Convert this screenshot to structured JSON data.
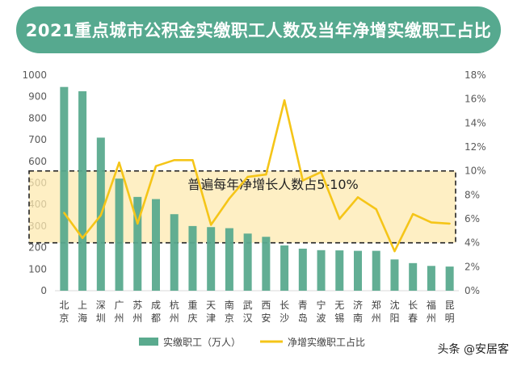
{
  "colors": {
    "title_bg": "#56a98f",
    "bar": "#5aaa8e",
    "line": "#f5c518",
    "band_fill": "#fdeab0",
    "band_border": "#222222",
    "axis_text": "#595959"
  },
  "watermark": "头条 @安居客",
  "chart_data": {
    "type": "bar+line",
    "title": "2021重点城市公积金实缴职工人数及当年净增实缴职工占比",
    "categories": [
      "北京",
      "上海",
      "深圳",
      "广州",
      "苏州",
      "成都",
      "杭州",
      "重庆",
      "天津",
      "南京",
      "武汉",
      "西安",
      "长沙",
      "青岛",
      "宁波",
      "无锡",
      "济南",
      "郑州",
      "沈阳",
      "长春",
      "福州",
      "昆明"
    ],
    "category_labels": [
      [
        "北",
        "京"
      ],
      [
        "上",
        "海"
      ],
      [
        "深",
        "圳"
      ],
      [
        "广",
        "州"
      ],
      [
        "苏",
        "州"
      ],
      [
        "成",
        "都"
      ],
      [
        "杭",
        "州"
      ],
      [
        "重",
        "庆"
      ],
      [
        "天",
        "津"
      ],
      [
        "南",
        "京"
      ],
      [
        "武",
        "汉"
      ],
      [
        "西",
        "安"
      ],
      [
        "长",
        "沙"
      ],
      [
        "青",
        "岛"
      ],
      [
        "宁",
        "波"
      ],
      [
        "无",
        "锡"
      ],
      [
        "济",
        "南"
      ],
      [
        "郑",
        "州"
      ],
      [
        "沈",
        "阳"
      ],
      [
        "长",
        "春"
      ],
      [
        "福",
        "州"
      ],
      [
        "昆",
        "明"
      ]
    ],
    "series": [
      {
        "name": "实缴职工（万人）",
        "type": "bar",
        "axis": "left",
        "values": [
          945,
          925,
          710,
          520,
          435,
          425,
          355,
          300,
          295,
          290,
          265,
          250,
          210,
          195,
          188,
          187,
          185,
          185,
          145,
          128,
          115,
          112
        ]
      },
      {
        "name": "净增实缴职工占比",
        "type": "line",
        "axis": "right",
        "values": [
          6.5,
          4.4,
          6.3,
          10.7,
          5.6,
          10.4,
          10.9,
          10.9,
          5.5,
          7.7,
          9.5,
          9.7,
          15.9,
          9.2,
          9.9,
          6.0,
          7.8,
          6.8,
          3.3,
          6.4,
          5.7,
          5.6
        ]
      }
    ],
    "y_left": {
      "min": 0,
      "max": 1000,
      "ticks": [
        "0",
        "100",
        "200",
        "300",
        "400",
        "500",
        "600",
        "700",
        "800",
        "900",
        "1000"
      ]
    },
    "y_right": {
      "min": 0,
      "max": 18,
      "ticks": [
        "0%",
        "2%",
        "4%",
        "6%",
        "8%",
        "10%",
        "12%",
        "14%",
        "16%",
        "18%"
      ]
    },
    "annotation": {
      "text": "普遍每年净增长人数占5-10%",
      "range_right_percent": [
        4,
        10
      ]
    },
    "legend": {
      "position": "bottom",
      "items": [
        "实缴职工（万人）",
        "净增实缴职工占比"
      ]
    }
  }
}
